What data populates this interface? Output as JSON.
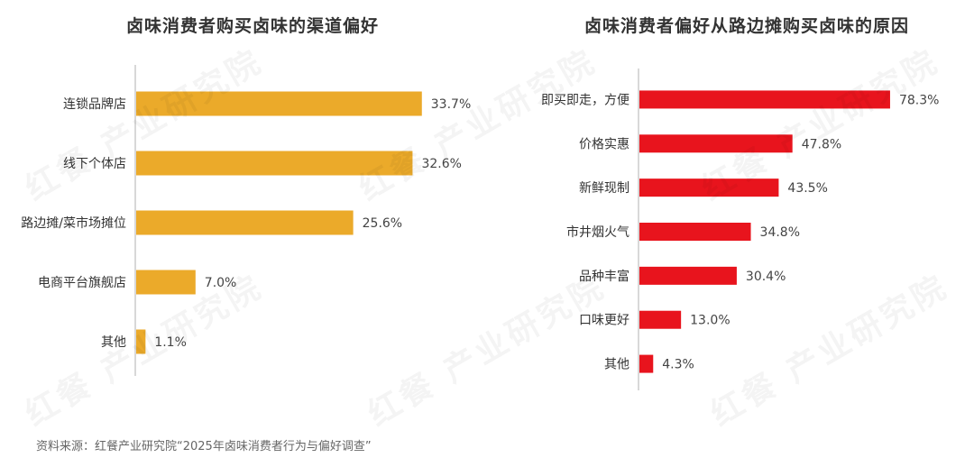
{
  "chart_data": [
    {
      "type": "bar",
      "orientation": "horizontal",
      "title": "卤味消费者购买卤味的渠道偏好",
      "categories": [
        "连锁品牌店",
        "线下个体店",
        "路边摊/菜市场摊位",
        "电商平台旗舰店",
        "其他"
      ],
      "values": [
        33.7,
        32.6,
        25.6,
        7.0,
        1.1
      ],
      "value_labels": [
        "33.7%",
        "32.6%",
        "25.6%",
        "7.0%",
        "1.1%"
      ],
      "unit": "%",
      "xlim": [
        0,
        40
      ],
      "color": "#EBAA2A",
      "grid": false,
      "legend": "none"
    },
    {
      "type": "bar",
      "orientation": "horizontal",
      "title": "卤味消费者偏好从路边摊购买卤味的原因",
      "categories": [
        "即买即走，方便",
        "价格实惠",
        "新鲜现制",
        "市井烟火气",
        "品种丰富",
        "口味更好",
        "其他"
      ],
      "values": [
        78.3,
        47.8,
        43.5,
        34.8,
        30.4,
        13.0,
        4.3
      ],
      "value_labels": [
        "78.3%",
        "47.8%",
        "43.5%",
        "34.8%",
        "30.4%",
        "13.0%",
        "4.3%"
      ],
      "unit": "%",
      "xlim": [
        0,
        100
      ],
      "color": "#E8141D",
      "grid": false,
      "legend": "none"
    }
  ],
  "source": "资料来源：红餐产业研究院“2025年卤味消费者行为与偏好调查”",
  "watermark": "红餐 产业研究院"
}
